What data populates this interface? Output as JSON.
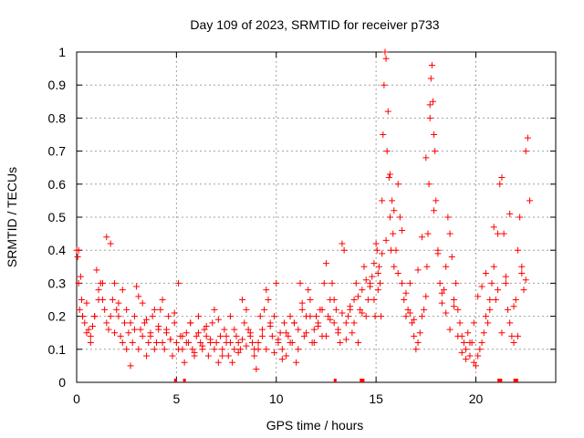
{
  "chart_data": {
    "type": "scatter",
    "title": "Day 109 of 2023, SRMTID for receiver p733",
    "xlabel": "GPS time / hours",
    "ylabel": "SRMTID / TECUs",
    "xlim": [
      0,
      24
    ],
    "ylim": [
      0,
      1
    ],
    "xticks": [
      0,
      5,
      10,
      15,
      20
    ],
    "xtick_labels": [
      "0",
      "5",
      "10",
      "15",
      "20"
    ],
    "yticks": [
      0,
      0.1,
      0.2,
      0.3,
      0.4,
      0.5,
      0.6,
      0.7,
      0.8,
      0.9,
      1
    ],
    "ytick_labels": [
      "0",
      "0.1",
      "0.2",
      "0.3",
      "0.4",
      "0.5",
      "0.6",
      "0.7",
      "0.8",
      "0.9",
      "1"
    ],
    "grid": true,
    "marker": "+",
    "series_color": "#ff0000",
    "series": [
      {
        "name": "SRMTID",
        "x": [
          0.0,
          0.05,
          0.1,
          0.15,
          0.2,
          0.25,
          0.3,
          0.4,
          0.5,
          0.6,
          0.7,
          0.8,
          0.9,
          1.0,
          1.1,
          1.2,
          1.3,
          1.4,
          1.5,
          1.6,
          1.7,
          1.8,
          1.9,
          2.0,
          2.1,
          2.2,
          2.3,
          2.4,
          2.5,
          2.6,
          2.7,
          2.8,
          2.9,
          3.0,
          3.1,
          3.2,
          3.3,
          3.4,
          3.5,
          3.6,
          3.7,
          3.8,
          3.9,
          4.0,
          4.1,
          4.2,
          4.3,
          4.4,
          4.5,
          4.6,
          4.7,
          4.8,
          4.9,
          5.0,
          5.1,
          5.2,
          5.3,
          5.4,
          5.5,
          5.6,
          5.7,
          5.8,
          5.9,
          6.0,
          6.1,
          6.2,
          6.3,
          6.4,
          6.5,
          6.6,
          6.7,
          6.8,
          6.9,
          7.0,
          7.1,
          7.2,
          7.3,
          7.4,
          7.5,
          7.6,
          7.7,
          7.8,
          7.9,
          8.0,
          8.1,
          8.2,
          8.3,
          8.4,
          8.5,
          8.6,
          8.7,
          8.8,
          8.9,
          9.0,
          9.1,
          9.2,
          9.3,
          9.4,
          9.5,
          9.6,
          9.7,
          9.8,
          9.9,
          10.0,
          10.1,
          10.2,
          10.3,
          10.4,
          10.5,
          10.6,
          10.7,
          10.8,
          10.9,
          11.0,
          11.1,
          11.2,
          11.3,
          11.4,
          11.5,
          11.6,
          11.7,
          11.8,
          11.9,
          12.0,
          12.1,
          12.2,
          12.3,
          12.4,
          12.5,
          12.6,
          12.7,
          12.8,
          12.9,
          13.0,
          13.1,
          13.2,
          13.3,
          13.4,
          13.5,
          13.6,
          13.7,
          13.8,
          13.9,
          14.0,
          14.1,
          14.2,
          14.3,
          14.4,
          14.5,
          14.6,
          14.7,
          14.8,
          14.9,
          14.95,
          15.0,
          15.05,
          15.1,
          15.15,
          15.2,
          15.25,
          15.3,
          15.35,
          15.4,
          15.45,
          15.5,
          15.55,
          15.6,
          15.65,
          15.7,
          15.75,
          15.8,
          15.85,
          15.9,
          16.0,
          16.1,
          16.2,
          16.3,
          16.4,
          16.5,
          16.6,
          16.7,
          16.8,
          16.9,
          17.0,
          17.1,
          17.2,
          17.3,
          17.4,
          17.5,
          17.55,
          17.6,
          17.65,
          17.7,
          17.75,
          17.8,
          17.85,
          17.9,
          17.95,
          18.0,
          18.1,
          18.2,
          18.3,
          18.4,
          18.5,
          18.6,
          18.7,
          18.8,
          18.9,
          19.0,
          19.1,
          19.2,
          19.3,
          19.4,
          19.5,
          19.6,
          19.7,
          19.8,
          19.9,
          20.0,
          20.1,
          20.2,
          20.3,
          20.4,
          20.5,
          20.6,
          20.7,
          20.8,
          20.9,
          21.0,
          21.1,
          21.2,
          21.3,
          21.4,
          21.5,
          21.6,
          21.7,
          21.8,
          21.9,
          22.0,
          22.1,
          22.2,
          22.3,
          22.4,
          22.5,
          22.6,
          22.7,
          0.1,
          0.3,
          0.5,
          0.7,
          0.9,
          1.1,
          1.3,
          1.5,
          1.7,
          1.9,
          2.1,
          2.3,
          2.5,
          2.7,
          2.9,
          3.1,
          3.3,
          3.5,
          3.7,
          3.9,
          4.1,
          4.3,
          4.5,
          4.7,
          4.9,
          5.1,
          5.3,
          5.5,
          5.7,
          5.9,
          6.1,
          6.3,
          6.5,
          6.7,
          6.9,
          7.1,
          7.3,
          7.5,
          7.7,
          7.9,
          8.1,
          8.3,
          8.5,
          8.7,
          8.9,
          9.1,
          9.3,
          9.5,
          9.7,
          9.9,
          10.1,
          10.3,
          10.5,
          10.7,
          10.9,
          11.1,
          11.3,
          11.5,
          11.7,
          11.9,
          12.1,
          12.3,
          12.5,
          12.7,
          12.9,
          13.1,
          13.3,
          13.5,
          13.7,
          13.9,
          14.1,
          14.3,
          14.5,
          14.7,
          14.9,
          15.1,
          15.3,
          15.5,
          15.7,
          15.9,
          16.1,
          16.3,
          16.5,
          16.7,
          16.9,
          17.1,
          17.3,
          17.5,
          17.7,
          17.9,
          18.1,
          18.3,
          18.5,
          18.7,
          18.9,
          19.1,
          19.3,
          19.5,
          19.7,
          19.9,
          20.1,
          20.3,
          20.5,
          20.7,
          20.9,
          21.1,
          21.3,
          21.5,
          21.7,
          21.9,
          22.1,
          22.3,
          22.5
        ],
        "y": [
          0.4,
          0.38,
          0.3,
          0.22,
          0.32,
          0.25,
          0.2,
          0.18,
          0.24,
          0.16,
          0.14,
          0.17,
          0.2,
          0.34,
          0.28,
          0.3,
          0.25,
          0.22,
          0.18,
          0.16,
          0.2,
          0.25,
          0.15,
          0.22,
          0.2,
          0.14,
          0.12,
          0.18,
          0.1,
          0.15,
          0.05,
          0.12,
          0.2,
          0.29,
          0.1,
          0.16,
          0.14,
          0.18,
          0.08,
          0.12,
          0.15,
          0.2,
          0.1,
          0.12,
          0.16,
          0.22,
          0.25,
          0.1,
          0.15,
          0.2,
          0.13,
          0.08,
          0.18,
          0.12,
          0.3,
          0.14,
          0.1,
          0.06,
          0.15,
          0.12,
          0.18,
          0.1,
          0.08,
          0.14,
          0.2,
          0.12,
          0.1,
          0.16,
          0.14,
          0.08,
          0.12,
          0.18,
          0.22,
          0.12,
          0.06,
          0.14,
          0.1,
          0.16,
          0.12,
          0.08,
          0.2,
          0.06,
          0.1,
          0.14,
          0.12,
          0.1,
          0.25,
          0.18,
          0.22,
          0.16,
          0.14,
          0.12,
          0.1,
          0.04,
          0.1,
          0.2,
          0.16,
          0.22,
          0.28,
          0.25,
          0.18,
          0.14,
          0.2,
          0.3,
          0.12,
          0.15,
          0.1,
          0.18,
          0.08,
          0.14,
          0.2,
          0.12,
          0.18,
          0.06,
          0.16,
          0.3,
          0.22,
          0.14,
          0.2,
          0.28,
          0.25,
          0.12,
          0.16,
          0.2,
          0.18,
          0.22,
          0.14,
          0.3,
          0.36,
          0.2,
          0.25,
          0.3,
          0.18,
          0.22,
          0.15,
          0.12,
          0.42,
          0.4,
          0.18,
          0.2,
          0.22,
          0.15,
          0.25,
          0.3,
          0.12,
          0.22,
          0.28,
          0.35,
          0.2,
          0.25,
          0.3,
          0.32,
          0.25,
          0.2,
          0.42,
          0.4,
          0.28,
          0.35,
          0.3,
          0.2,
          0.55,
          0.75,
          0.9,
          1.0,
          0.98,
          0.7,
          0.82,
          0.62,
          0.5,
          0.4,
          0.55,
          0.45,
          0.35,
          0.4,
          0.6,
          0.5,
          0.3,
          0.25,
          0.2,
          0.22,
          0.3,
          0.18,
          0.14,
          0.1,
          0.12,
          0.15,
          0.2,
          0.22,
          0.26,
          0.35,
          0.45,
          0.6,
          0.8,
          0.92,
          0.96,
          0.85,
          0.75,
          0.7,
          0.55,
          0.4,
          0.3,
          0.24,
          0.28,
          0.35,
          0.5,
          0.45,
          0.38,
          0.25,
          0.3,
          0.22,
          0.18,
          0.14,
          0.12,
          0.1,
          0.15,
          0.08,
          0.12,
          0.06,
          0.05,
          0.08,
          0.1,
          0.12,
          0.15,
          0.2,
          0.18,
          0.25,
          0.3,
          0.35,
          0.25,
          0.45,
          0.6,
          0.62,
          0.45,
          0.3,
          0.22,
          0.18,
          0.14,
          0.12,
          0.25,
          0.4,
          0.5,
          0.35,
          0.28,
          0.7,
          0.74,
          0.55,
          0.4,
          0.2,
          0.15,
          0.12,
          0.2,
          0.25,
          0.3,
          0.44,
          0.42,
          0.3,
          0.24,
          0.28,
          0.22,
          0.18,
          0.16,
          0.26,
          0.24,
          0.19,
          0.14,
          0.22,
          0.17,
          0.12,
          0.16,
          0.13,
          0.21,
          0.1,
          0.14,
          0.12,
          0.18,
          0.09,
          0.15,
          0.11,
          0.17,
          0.13,
          0.1,
          0.19,
          0.08,
          0.14,
          0.12,
          0.16,
          0.09,
          0.13,
          0.11,
          0.15,
          0.08,
          0.12,
          0.14,
          0.1,
          0.17,
          0.09,
          0.13,
          0.07,
          0.15,
          0.12,
          0.18,
          0.1,
          0.24,
          0.15,
          0.2,
          0.12,
          0.17,
          0.22,
          0.14,
          0.19,
          0.25,
          0.16,
          0.21,
          0.13,
          0.23,
          0.18,
          0.26,
          0.21,
          0.31,
          0.29,
          0.36,
          0.33,
          0.39,
          0.43,
          0.63,
          0.52,
          0.33,
          0.46,
          0.27,
          0.21,
          0.19,
          0.34,
          0.44,
          0.68,
          0.84,
          0.52,
          0.39,
          0.27,
          0.21,
          0.16,
          0.23,
          0.14,
          0.09,
          0.07,
          0.12,
          0.18,
          0.26,
          0.29,
          0.33,
          0.22,
          0.47,
          0.28,
          0.15,
          0.32,
          0.51,
          0.23,
          0.14,
          0.33,
          0.31
        ]
      }
    ],
    "rug_x": [
      4.95,
      5.4,
      12.95,
      14.25,
      14.35,
      21.15,
      21.25,
      21.95,
      22.05
    ]
  }
}
